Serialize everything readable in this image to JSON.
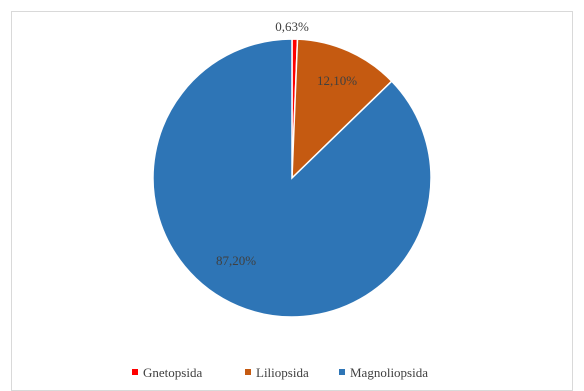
{
  "chart_data": {
    "type": "pie",
    "categories": [
      "Gnetopsida",
      "Liliopsida",
      "Magnoliopsida"
    ],
    "values": [
      0.63,
      12.1,
      87.2
    ],
    "data_labels": [
      "0,63%",
      "12,10%",
      "87,20%"
    ],
    "colors": [
      "#ff0000",
      "#c55a11",
      "#2e75b6"
    ],
    "legend_position": "bottom",
    "title": "",
    "start_angle": "top, clockwise"
  }
}
